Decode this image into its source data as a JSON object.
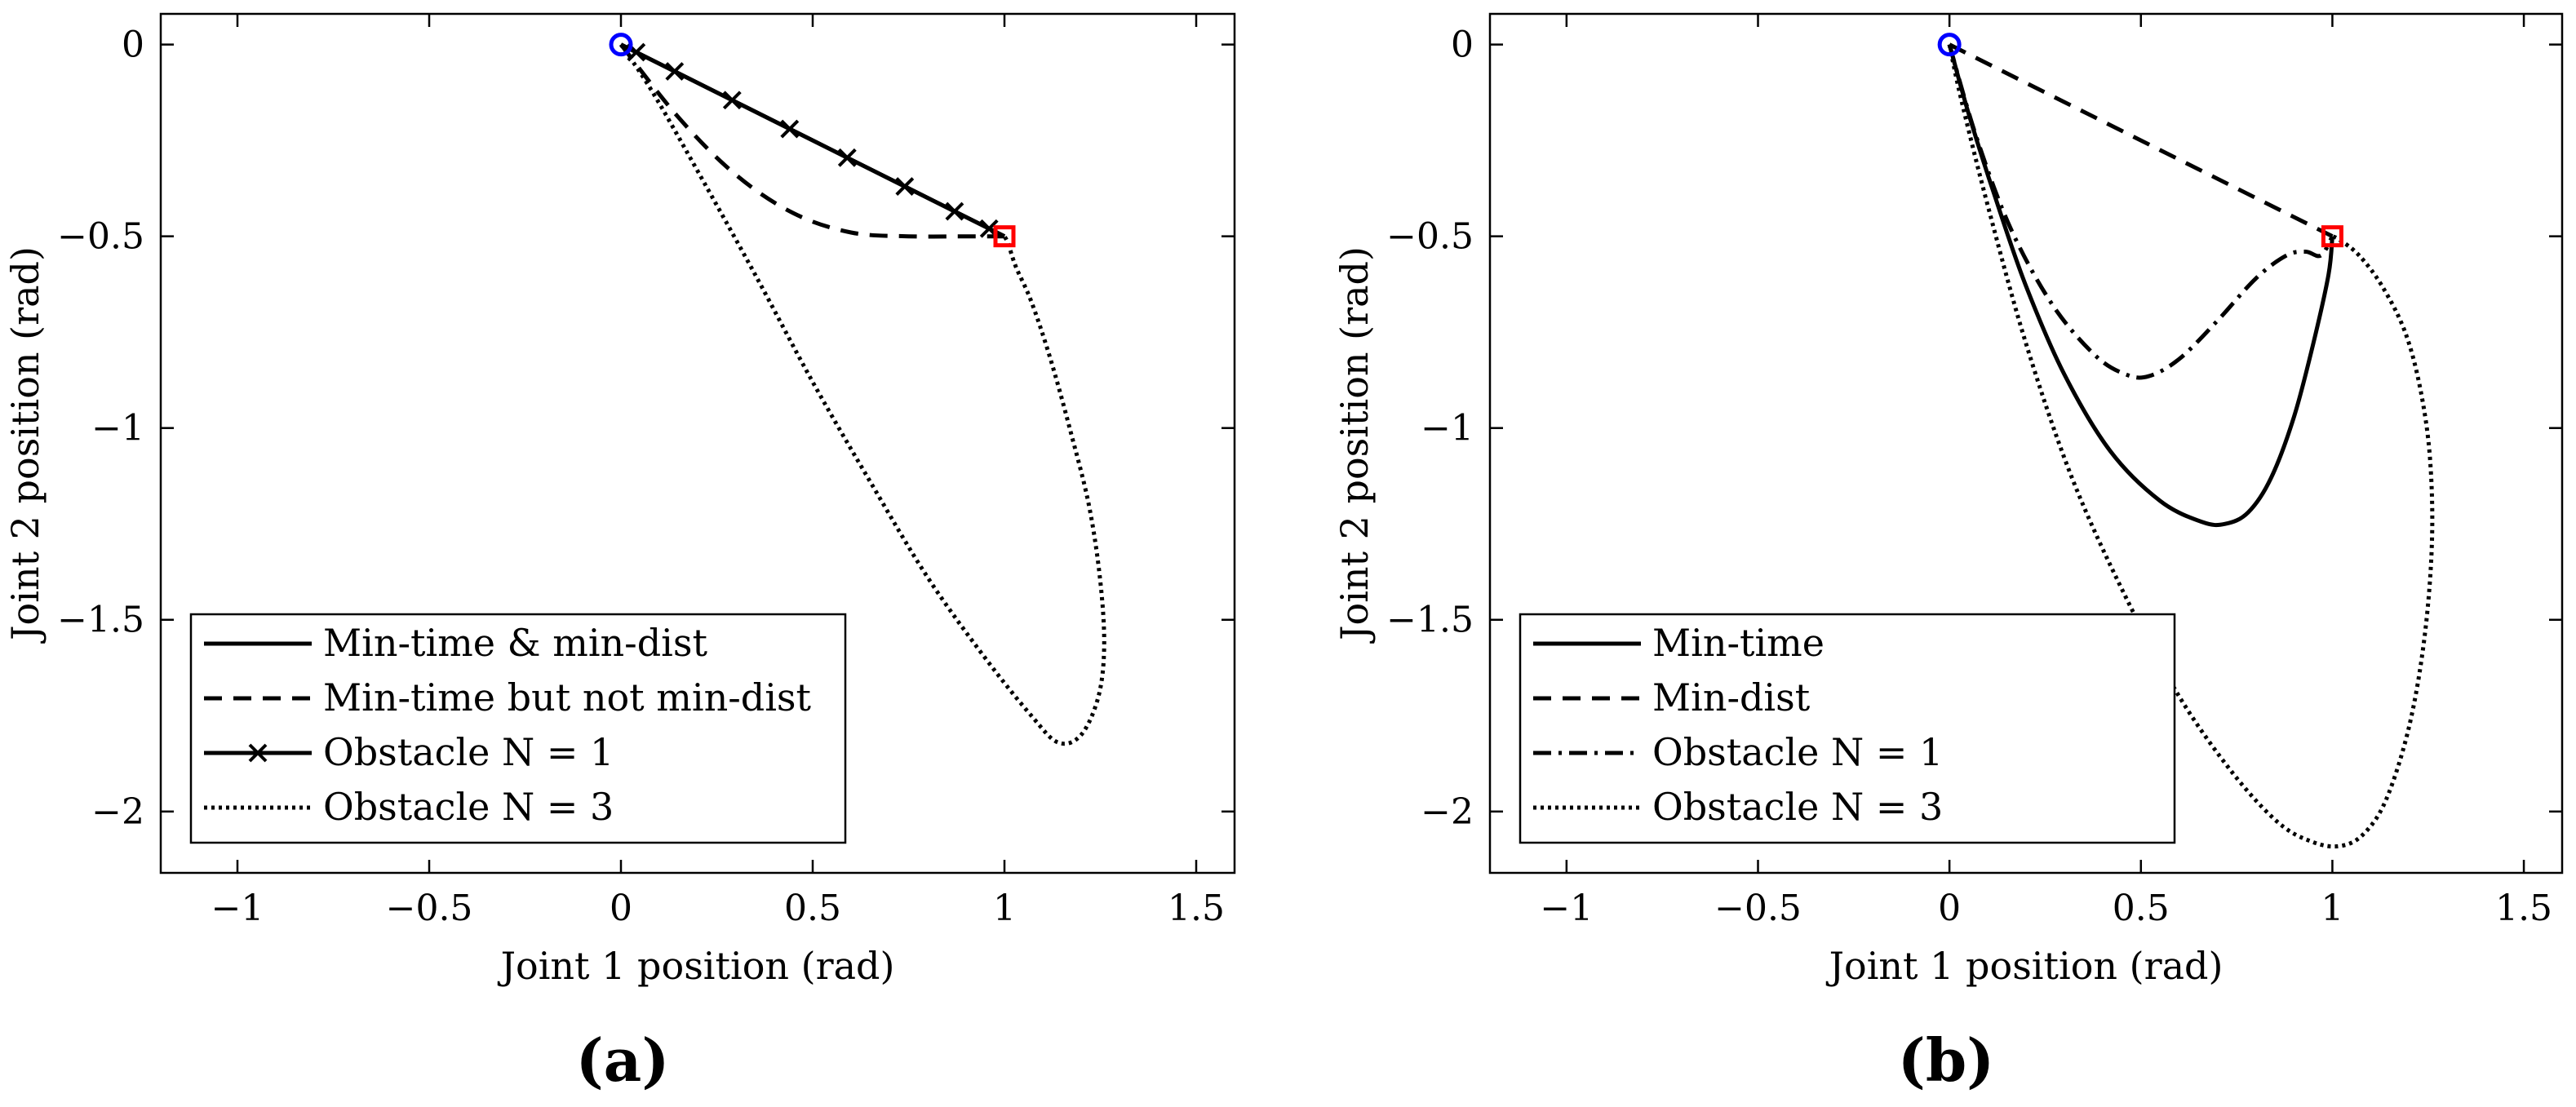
{
  "figure": {
    "panels": [
      {
        "id": "a",
        "label": "(a)"
      },
      {
        "id": "b",
        "label": "(b)"
      }
    ]
  },
  "chart_data": [
    {
      "type": "line",
      "panel_label": "(a)",
      "xlabel": "Joint 1 position (rad)",
      "ylabel": "Joint 2 position (rad)",
      "xlim": [
        -1.2,
        1.6
      ],
      "ylim": [
        -2.16,
        0.08
      ],
      "xticks": [
        -1,
        -0.5,
        0,
        0.5,
        1,
        1.5
      ],
      "xtick_labels": [
        "−1",
        "−0.5",
        "0",
        "0.5",
        "1",
        "1.5"
      ],
      "yticks": [
        0,
        -0.5,
        -1,
        -1.5,
        -2
      ],
      "ytick_labels": [
        "0",
        "−0.5",
        "−1",
        "−1.5",
        "−2"
      ],
      "legend_position": "bottom-left",
      "start_marker": {
        "x": 0,
        "y": 0,
        "shape": "circle",
        "color": "#0000ff"
      },
      "goal_marker": {
        "x": 1,
        "y": -0.5,
        "shape": "square",
        "color": "#ff0000"
      },
      "series": [
        {
          "name": "Min-time & min-dist",
          "style": "solid",
          "marker": "none",
          "x": [
            0,
            1
          ],
          "y": [
            0,
            -0.5
          ]
        },
        {
          "name": "Min-time but not min-dist",
          "style": "dashed",
          "marker": "none",
          "x": [
            0,
            0.15,
            0.3,
            0.45,
            0.6,
            0.75,
            0.9,
            1.0
          ],
          "y": [
            0,
            -0.19,
            -0.34,
            -0.44,
            -0.49,
            -0.5,
            -0.5,
            -0.5
          ]
        },
        {
          "name": "Obstacle N = 1",
          "style": "solid",
          "marker": "x",
          "x": [
            0,
            0.04,
            0.14,
            0.29,
            0.44,
            0.59,
            0.74,
            0.87,
            0.96,
            1.0
          ],
          "y": [
            0,
            -0.02,
            -0.07,
            -0.145,
            -0.22,
            -0.295,
            -0.37,
            -0.435,
            -0.48,
            -0.5
          ],
          "marker_x": [
            0.04,
            0.14,
            0.29,
            0.44,
            0.59,
            0.74,
            0.87,
            0.96
          ],
          "marker_y": [
            -0.02,
            -0.07,
            -0.145,
            -0.22,
            -0.295,
            -0.37,
            -0.435,
            -0.48
          ]
        },
        {
          "name": "Obstacle N = 3",
          "style": "dotted",
          "marker": "none",
          "x": [
            0,
            0.08,
            0.2,
            0.35,
            0.5,
            0.65,
            0.8,
            0.95,
            1.07,
            1.14,
            1.2,
            1.245,
            1.26,
            1.25,
            1.22,
            1.17,
            1.12,
            1.07,
            1.03,
            1.01,
            1.0
          ],
          "y": [
            0,
            -0.12,
            -0.33,
            -0.6,
            -0.88,
            -1.14,
            -1.39,
            -1.6,
            -1.75,
            -1.82,
            -1.8,
            -1.7,
            -1.57,
            -1.4,
            -1.2,
            -1.0,
            -0.82,
            -0.67,
            -0.58,
            -0.52,
            -0.5
          ]
        }
      ]
    },
    {
      "type": "line",
      "panel_label": "(b)",
      "xlabel": "Joint 1 position (rad)",
      "ylabel": "Joint 2 position (rad)",
      "xlim": [
        -1.2,
        1.6
      ],
      "ylim": [
        -2.16,
        0.08
      ],
      "xticks": [
        -1,
        -0.5,
        0,
        0.5,
        1,
        1.5
      ],
      "xtick_labels": [
        "−1",
        "−0.5",
        "0",
        "0.5",
        "1",
        "1.5"
      ],
      "yticks": [
        0,
        -0.5,
        -1,
        -1.5,
        -2
      ],
      "ytick_labels": [
        "0",
        "−0.5",
        "−1",
        "−1.5",
        "−2"
      ],
      "legend_position": "bottom-left",
      "start_marker": {
        "x": 0,
        "y": 0,
        "shape": "circle",
        "color": "#0000ff"
      },
      "goal_marker": {
        "x": 1,
        "y": -0.5,
        "shape": "square",
        "color": "#ff0000"
      },
      "series": [
        {
          "name": "Min-time",
          "style": "solid",
          "marker": "none",
          "x": [
            0,
            0.05,
            0.12,
            0.2,
            0.3,
            0.42,
            0.55,
            0.66,
            0.72,
            0.78,
            0.84,
            0.9,
            0.95,
            0.99,
            1.0
          ],
          "y": [
            0,
            -0.18,
            -0.4,
            -0.63,
            -0.86,
            -1.06,
            -1.19,
            -1.245,
            -1.25,
            -1.22,
            -1.13,
            -0.97,
            -0.78,
            -0.6,
            -0.5
          ]
        },
        {
          "name": "Min-dist",
          "style": "dashed",
          "marker": "none",
          "x": [
            0,
            1
          ],
          "y": [
            0,
            -0.5
          ]
        },
        {
          "name": "Obstacle N = 1",
          "style": "dashdot",
          "marker": "none",
          "x": [
            0,
            0.07,
            0.16,
            0.27,
            0.38,
            0.46,
            0.52,
            0.6,
            0.7,
            0.8,
            0.88,
            0.93,
            0.97,
            1.0
          ],
          "y": [
            0,
            -0.24,
            -0.48,
            -0.68,
            -0.81,
            -0.86,
            -0.865,
            -0.82,
            -0.72,
            -0.61,
            -0.55,
            -0.54,
            -0.55,
            -0.5
          ]
        },
        {
          "name": "Obstacle N = 3",
          "style": "dotted",
          "marker": "none",
          "x": [
            0,
            0.03,
            0.1,
            0.2,
            0.32,
            0.46,
            0.6,
            0.74,
            0.86,
            0.95,
            1.02,
            1.08,
            1.14,
            1.2,
            1.24,
            1.26,
            1.255,
            1.23,
            1.19,
            1.13,
            1.07,
            1.02,
            1.0
          ],
          "y": [
            0,
            -0.14,
            -0.42,
            -0.78,
            -1.13,
            -1.44,
            -1.7,
            -1.9,
            -2.03,
            -2.08,
            -2.09,
            -2.06,
            -1.97,
            -1.78,
            -1.55,
            -1.3,
            -1.08,
            -0.9,
            -0.75,
            -0.63,
            -0.55,
            -0.51,
            -0.5
          ]
        }
      ]
    }
  ]
}
